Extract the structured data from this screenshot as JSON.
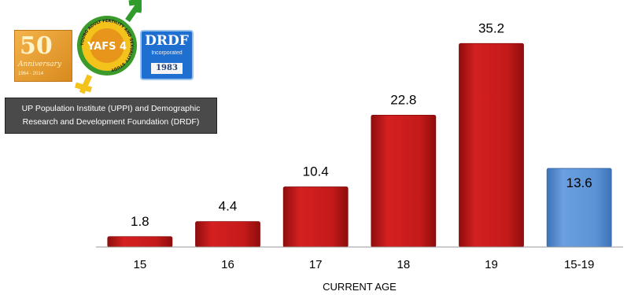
{
  "organization": {
    "caption": "UP Population Institute (UPPI) and Demographic\nResearch and Development Foundation (DRDF)",
    "logos": {
      "fifty": {
        "number": "50",
        "text": "Anniversary",
        "years": "1964 - 2014"
      },
      "yafs": {
        "text": "YAFS 4",
        "ring_text": "YOUNG ADULT FERTILITY AND SEXUALITY STUDY"
      },
      "drdf": {
        "name": "DRDF",
        "incorporated": "Incorporated",
        "year": "1983"
      }
    }
  },
  "chart_data": {
    "type": "bar",
    "categories": [
      "15",
      "16",
      "17",
      "18",
      "19",
      "15-19"
    ],
    "values": [
      1.8,
      4.4,
      10.4,
      22.8,
      35.2,
      13.6
    ],
    "data_labels": [
      "1.8",
      "4.4",
      "10.4",
      "22.8",
      "35.2",
      "13.6"
    ],
    "bar_colors": [
      "#c41a1a",
      "#c41a1a",
      "#c41a1a",
      "#c41a1a",
      "#c41a1a",
      "#5b93d6"
    ],
    "title": "",
    "xlabel": "CURRENT AGE",
    "ylabel": "",
    "ylim": [
      0,
      40
    ],
    "grid": false,
    "legend": "none"
  }
}
